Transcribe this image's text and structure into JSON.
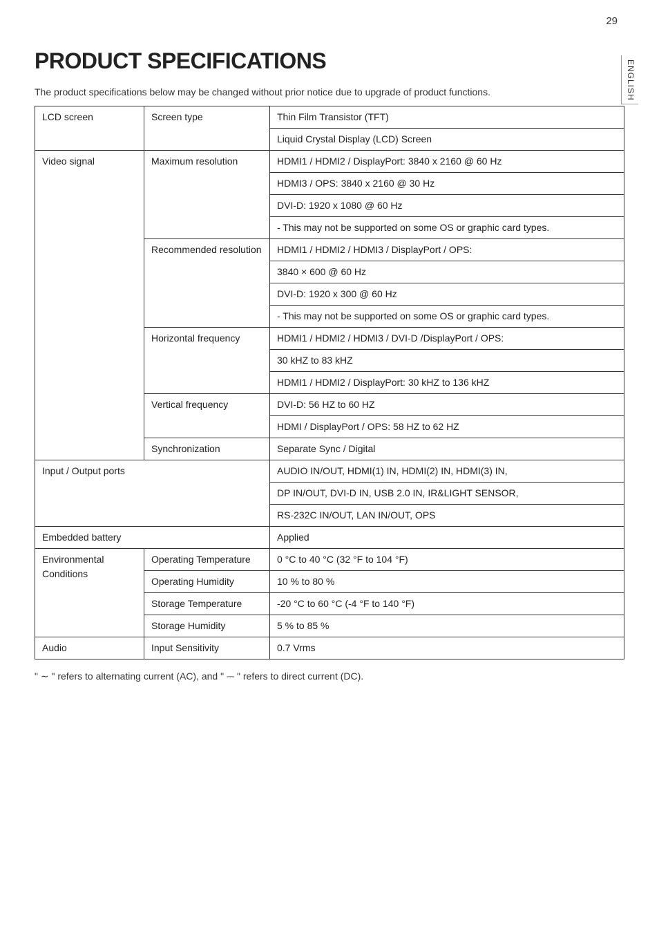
{
  "page": {
    "number": "29",
    "side_label": "ENGLISH"
  },
  "heading": "PRODUCT SPECIFICATIONS",
  "intro": "The product specifications below may be changed without prior notice due to upgrade of product functions.",
  "table": {
    "lcd_screen": {
      "label": "LCD screen",
      "screen_type_label": "Screen type",
      "screen_type_lines": [
        "Thin Film Transistor (TFT)",
        "Liquid Crystal Display (LCD) Screen"
      ]
    },
    "video_signal": {
      "label": "Video signal",
      "max_res_label": "Maximum resolution",
      "max_res_lines": [
        "HDMI1 / HDMI2 / DisplayPort: 3840 x 2160 @ 60 Hz",
        "HDMI3 / OPS: 3840 x 2160 @ 30 Hz",
        "DVI-D: 1920 x 1080 @ 60 Hz",
        "- This may not be supported on some OS or graphic card types."
      ],
      "rec_res_label": "Recommended resolution",
      "rec_res_lines": [
        "HDMI1 / HDMI2 / HDMI3 / DisplayPort / OPS:",
        "3840 × 600 @ 60 Hz",
        "DVI-D: 1920 x 300 @ 60 Hz",
        "- This may not be supported on some OS or graphic card types."
      ],
      "hfreq_label": "Horizontal frequency",
      "hfreq_lines": [
        "HDMI1 / HDMI2 / HDMI3 / DVI-D /DisplayPort / OPS:",
        "30 kHZ to 83 kHZ",
        "HDMI1 / HDMI2 / DisplayPort: 30 kHZ to 136 kHZ"
      ],
      "vfreq_label": "Vertical frequency",
      "vfreq_lines": [
        "DVI-D: 56 HZ to 60 HZ",
        "HDMI / DisplayPort / OPS: 58 HZ to 62 HZ"
      ],
      "sync_label": "Synchronization",
      "sync_value": "Separate Sync / Digital"
    },
    "io_ports": {
      "label": "Input / Output ports",
      "lines": [
        "AUDIO IN/OUT, HDMI(1) IN, HDMI(2) IN, HDMI(3) IN,",
        "DP IN/OUT, DVI-D IN, USB 2.0 IN, IR&LIGHT SENSOR,",
        "RS-232C IN/OUT, LAN IN/OUT, OPS"
      ]
    },
    "embedded_battery": {
      "label": "Embedded battery",
      "value": "Applied"
    },
    "env": {
      "label1": "Environmental",
      "label2": "Conditions",
      "op_temp_label": "Operating Temperature",
      "op_temp_value": "0 °C to 40 °C (32 °F to 104 °F)",
      "op_hum_label": "Operating Humidity",
      "op_hum_value": "10 % to 80 %",
      "st_temp_label": "Storage Temperature",
      "st_temp_value": "-20 °C to 60 °C (-4 °F to 140 °F)",
      "st_hum_label": "Storage Humidity",
      "st_hum_value": "5 % to 85 %"
    },
    "audio": {
      "label": "Audio",
      "sens_label": "Input Sensitivity",
      "sens_value": "0.7 Vrms"
    }
  },
  "footnote": "\" ∼ \" refers to alternating current (AC), and \" ⎓ \" refers to direct current (DC)."
}
